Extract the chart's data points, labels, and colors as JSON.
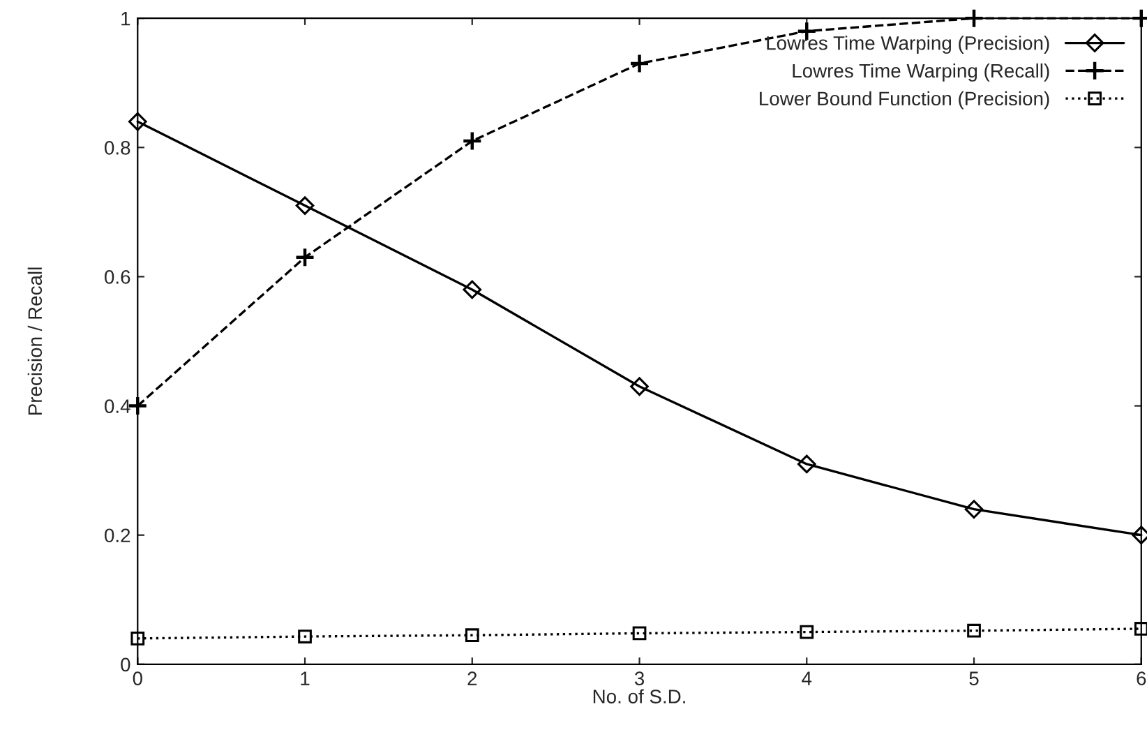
{
  "chart_data": {
    "type": "line",
    "xlabel": "No. of S.D.",
    "ylabel": "Precision / Recall",
    "x": [
      0,
      1,
      2,
      3,
      4,
      5,
      6
    ],
    "series": [
      {
        "name": "Lowres Time Warping (Precision)",
        "color": "#000000",
        "marker": "diamond",
        "line_style": "solid",
        "values": [
          0.84,
          0.71,
          0.58,
          0.43,
          0.31,
          0.24,
          0.2
        ]
      },
      {
        "name": "Lowres Time Warping (Recall)",
        "color": "#000000",
        "marker": "cross",
        "line_style": "dashed",
        "values": [
          0.4,
          0.63,
          0.81,
          0.93,
          0.98,
          1.0,
          1.0
        ]
      },
      {
        "name": "Lower Bound Function (Precision)",
        "color": "#000000",
        "marker": "square",
        "line_style": "dotted",
        "values": [
          0.04,
          0.043,
          0.045,
          0.048,
          0.05,
          0.052,
          0.055
        ]
      }
    ],
    "xlim": [
      0,
      6
    ],
    "ylim": [
      0,
      1
    ],
    "xticks": [
      0,
      1,
      2,
      3,
      4,
      5,
      6
    ],
    "yticks": [
      0,
      0.2,
      0.4,
      0.6,
      0.8,
      1
    ],
    "grid": false,
    "legend": "top right"
  }
}
